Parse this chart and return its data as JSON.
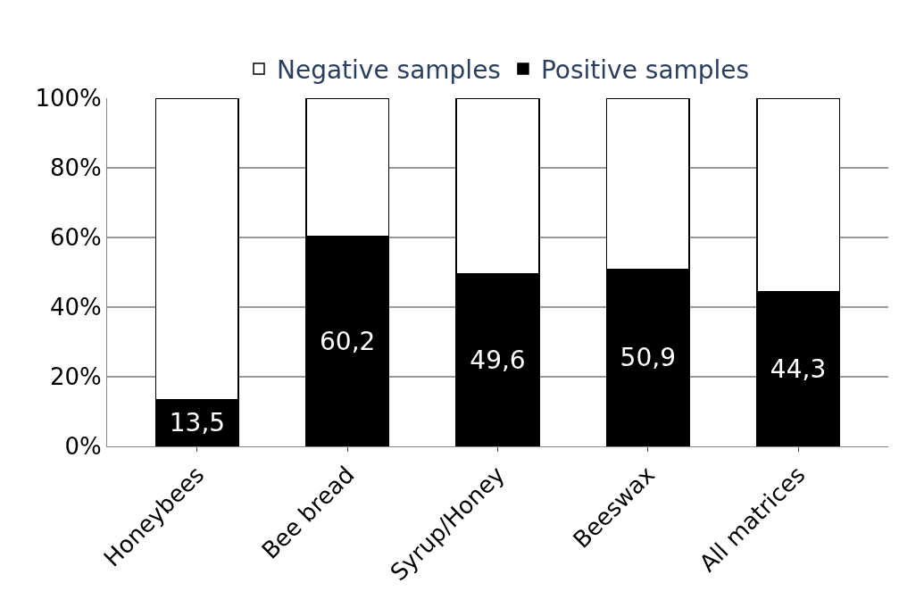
{
  "chart_data": {
    "type": "bar",
    "stacked": true,
    "categories": [
      "Honeybees",
      "Bee bread",
      "Syrup/Honey",
      "Beeswax",
      "All matrices"
    ],
    "series": [
      {
        "name": "Positive samples",
        "color": "#000000",
        "values": [
          13.5,
          60.2,
          49.6,
          50.9,
          44.3
        ],
        "value_labels": [
          "13,5",
          "60,2",
          "49,6",
          "50,9",
          "44,3"
        ]
      },
      {
        "name": "Negative samples",
        "color": "#ffffff",
        "values": [
          86.5,
          39.8,
          50.4,
          49.1,
          55.7
        ]
      }
    ],
    "ylim": [
      0,
      100
    ],
    "yticks": [
      {
        "value": 0,
        "label": "0%"
      },
      {
        "value": 20,
        "label": "20%"
      },
      {
        "value": 40,
        "label": "40%"
      },
      {
        "value": 60,
        "label": "60%"
      },
      {
        "value": 80,
        "label": "80%"
      },
      {
        "value": 100,
        "label": "100%"
      }
    ],
    "grid": "y",
    "legend": "top"
  }
}
